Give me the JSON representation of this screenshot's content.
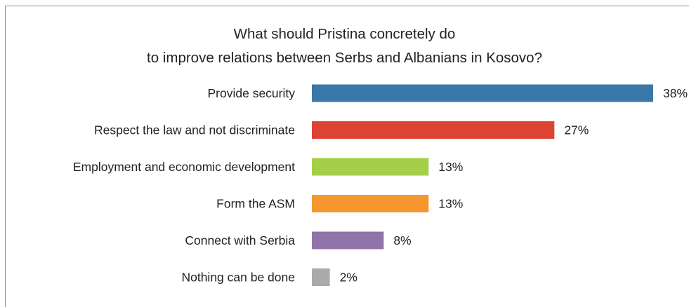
{
  "chart_data": {
    "type": "bar",
    "orientation": "horizontal",
    "title": "What should Pristina concretely do",
    "subtitle": "to improve relations between Serbs and Albanians in Kosovo?",
    "categories": [
      "Provide security",
      "Respect the law and not discriminate",
      "Employment and economic development",
      "Form the ASM",
      "Connect with Serbia",
      "Nothing can be done"
    ],
    "values": [
      38,
      27,
      13,
      13,
      8,
      2
    ],
    "value_labels": [
      "38%",
      "27%",
      "13%",
      "13%",
      "8%",
      "2%"
    ],
    "colors": [
      "#3a78aa",
      "#dd4332",
      "#a4cf48",
      "#f5962f",
      "#8f73a9",
      "#aaaaaa"
    ],
    "grid": false,
    "legend": "none"
  }
}
